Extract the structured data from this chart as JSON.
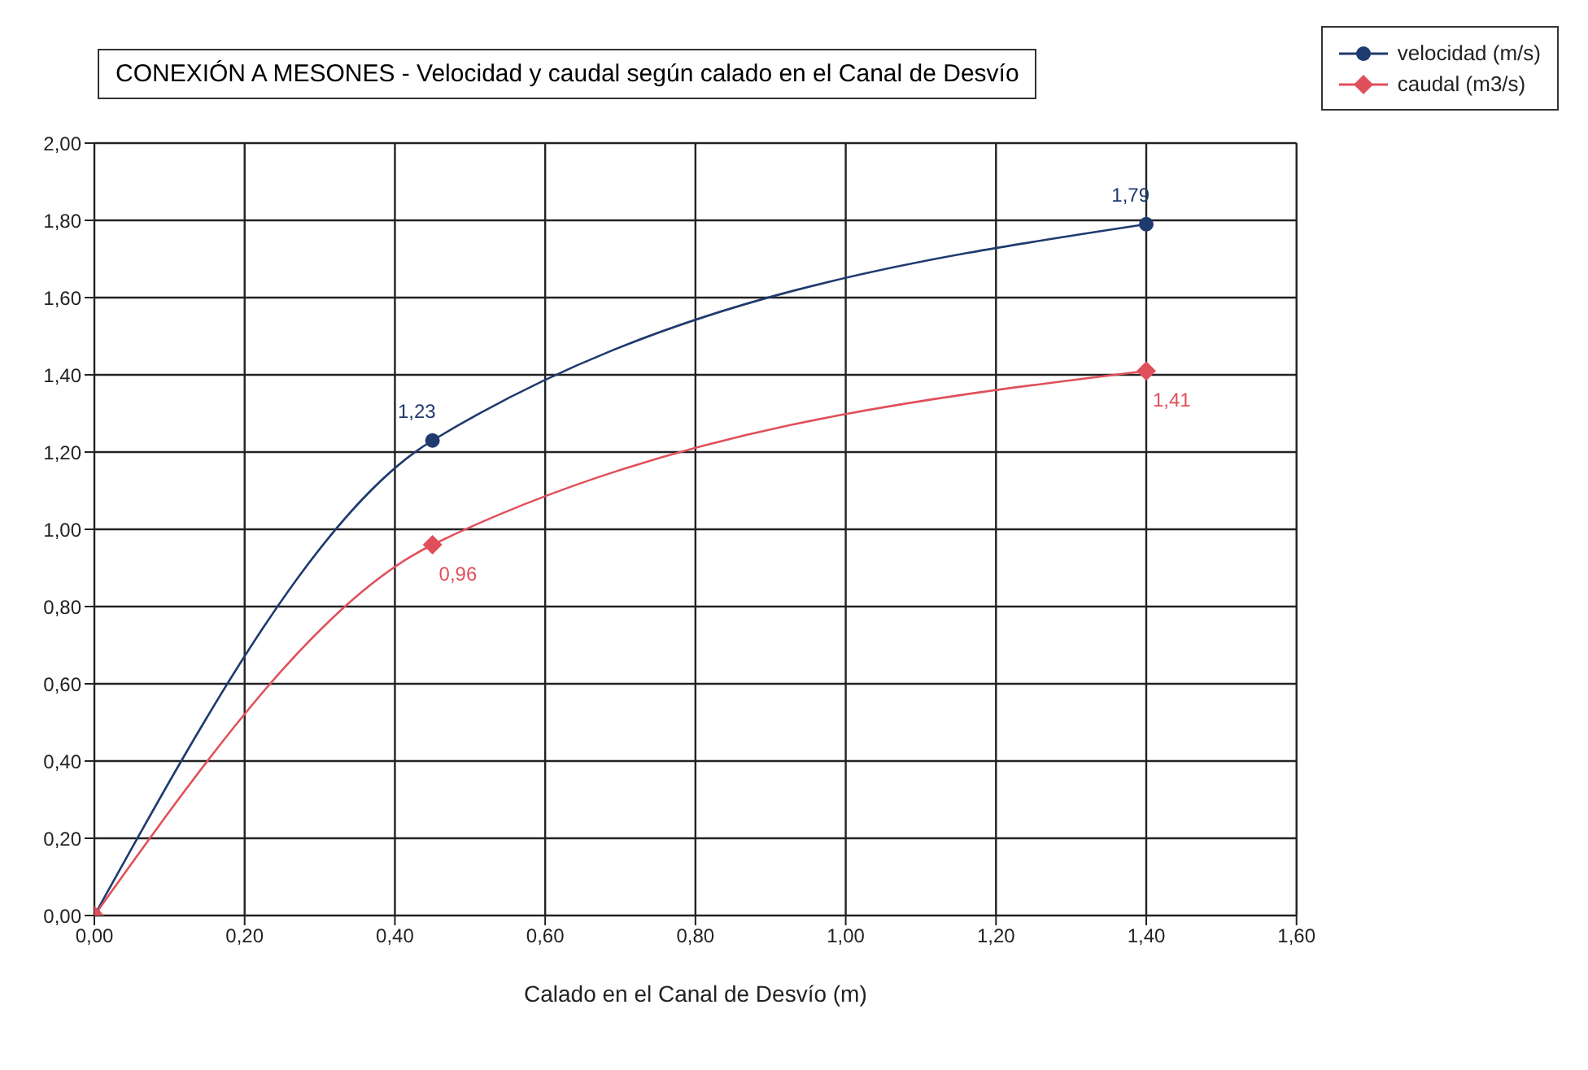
{
  "chart_data": {
    "type": "line",
    "title": "CONEXIÓN A MESONES - Velocidad y caudal según calado en el Canal de Desvío",
    "xlabel": "Calado en el Canal de Desvío (m)",
    "x": [
      0,
      0.45,
      1.4
    ],
    "series": [
      {
        "name": "velocidad (m/s)",
        "color": "#1f3a6e",
        "marker": "circle",
        "values": [
          0,
          1.23,
          1.79
        ],
        "value_labels": [
          null,
          "1,23",
          "1,79"
        ]
      },
      {
        "name": "caudal (m3/s)",
        "color": "#e0505a",
        "marker": "diamond",
        "values": [
          0,
          0.96,
          1.41
        ],
        "value_labels": [
          null,
          "0,96",
          "1,41"
        ]
      }
    ],
    "xlim": [
      0,
      1.6
    ],
    "xticks": [
      {
        "value": 0,
        "label": "0,00"
      },
      {
        "value": 0.2,
        "label": "0,20"
      },
      {
        "value": 0.4,
        "label": "0,40"
      },
      {
        "value": 0.6,
        "label": "0,60"
      },
      {
        "value": 0.8,
        "label": "0,80"
      },
      {
        "value": 1,
        "label": "1,00"
      },
      {
        "value": 1.2,
        "label": "1,20"
      },
      {
        "value": 1.4,
        "label": "1,40"
      },
      {
        "value": 1.6,
        "label": "1,60"
      }
    ],
    "ylim": [
      0,
      2
    ],
    "yticks": [
      {
        "value": 0,
        "label": "0,00"
      },
      {
        "value": 0.2,
        "label": "0,20"
      },
      {
        "value": 0.4,
        "label": "0,40"
      },
      {
        "value": 0.6,
        "label": "0,60"
      },
      {
        "value": 0.8,
        "label": "0,80"
      },
      {
        "value": 1,
        "label": "1,00"
      },
      {
        "value": 1.2,
        "label": "1,20"
      },
      {
        "value": 1.4,
        "label": "1,40"
      },
      {
        "value": 1.6,
        "label": "1,60"
      },
      {
        "value": 1.8,
        "label": "1,80"
      },
      {
        "value": 2,
        "label": "2,00"
      }
    ],
    "grid": true,
    "legend": "top right",
    "line_style": "solid"
  }
}
